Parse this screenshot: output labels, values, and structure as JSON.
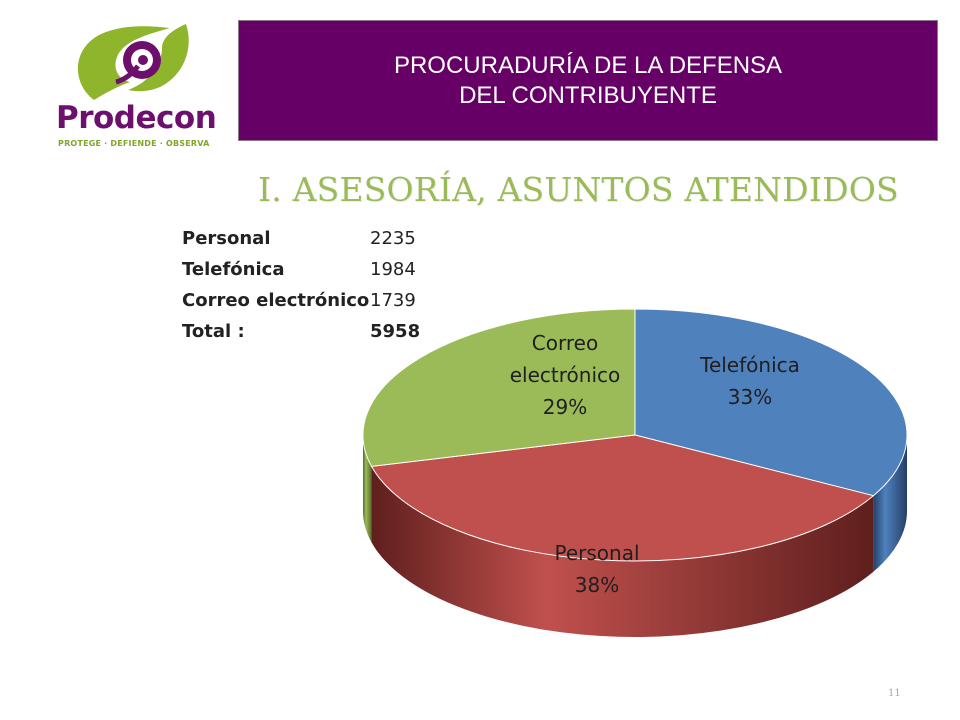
{
  "logo": {
    "name": "Prodecon",
    "tagline": "PROTEGE · DEFIENDE · OBSERVA"
  },
  "header": {
    "line1": "PROCURADURÍA DE LA DEFENSA",
    "line2": "DEL CONTRIBUYENTE"
  },
  "slide_title": "I. ASESORÍA, ASUNTOS ATENDIDOS",
  "table": {
    "rows": [
      {
        "label": "Personal",
        "value": "2235"
      },
      {
        "label": "Telefónica",
        "value": "1984"
      },
      {
        "label": "Correo  electrónico",
        "value": "1739"
      }
    ],
    "total": {
      "label": "Total :",
      "value": "5958"
    }
  },
  "chart_data": {
    "type": "pie",
    "style": "3d",
    "categories": [
      "Telefónica",
      "Personal",
      "Correo electrónico"
    ],
    "values": [
      33,
      38,
      29
    ],
    "slices": [
      {
        "name": "Telefónica",
        "value": 33,
        "label_lines": [
          "Telefónica",
          "33%"
        ],
        "color": "#4f81bd",
        "side_color": "#243f66"
      },
      {
        "name": "Personal",
        "value": 38,
        "label_lines": [
          "Personal",
          "38%"
        ],
        "color": "#c0504d",
        "side_color": "#5e1f1d"
      },
      {
        "name": "Correo electrónico",
        "value": 29,
        "label_lines": [
          "Correo",
          "electrónico",
          "29%"
        ],
        "color": "#9bbb59",
        "side_color": "#566a2b"
      }
    ]
  },
  "page_number": "11"
}
